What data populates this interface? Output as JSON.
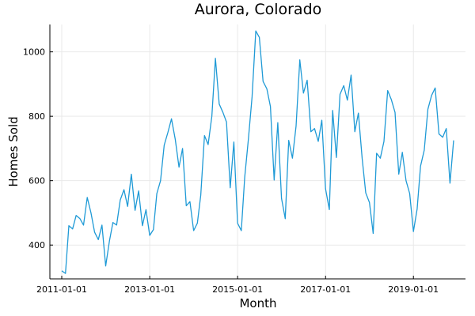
{
  "chart_data": {
    "type": "line",
    "title": "Aurora, Colorado",
    "xlabel": "Month",
    "ylabel": "Homes Sold",
    "x_start": "2011-01-01",
    "x_end": "2019-12-01",
    "x_ticks": [
      "2011-01-01",
      "2013-01-01",
      "2015-01-01",
      "2017-01-01",
      "2019-01-01"
    ],
    "y_ticks": [
      400,
      600,
      800,
      1000
    ],
    "ylim": [
      295,
      1085
    ],
    "grid": true,
    "legend": "none",
    "series": [
      {
        "color": "#1f9ad6",
        "x": [
          "2011-01-01",
          "2011-02-01",
          "2011-03-01",
          "2011-04-01",
          "2011-05-01",
          "2011-06-01",
          "2011-07-01",
          "2011-08-01",
          "2011-09-01",
          "2011-10-01",
          "2011-11-01",
          "2011-12-01",
          "2012-01-01",
          "2012-02-01",
          "2012-03-01",
          "2012-04-01",
          "2012-05-01",
          "2012-06-01",
          "2012-07-01",
          "2012-08-01",
          "2012-09-01",
          "2012-10-01",
          "2012-11-01",
          "2012-12-01",
          "2013-01-01",
          "2013-02-01",
          "2013-03-01",
          "2013-04-01",
          "2013-05-01",
          "2013-06-01",
          "2013-07-01",
          "2013-08-01",
          "2013-09-01",
          "2013-10-01",
          "2013-11-01",
          "2013-12-01",
          "2014-01-01",
          "2014-02-01",
          "2014-03-01",
          "2014-04-01",
          "2014-05-01",
          "2014-06-01",
          "2014-07-01",
          "2014-08-01",
          "2014-09-01",
          "2014-10-01",
          "2014-11-01",
          "2014-12-01",
          "2015-01-01",
          "2015-02-01",
          "2015-03-01",
          "2015-04-01",
          "2015-05-01",
          "2015-06-01",
          "2015-07-01",
          "2015-08-01",
          "2015-09-01",
          "2015-10-01",
          "2015-11-01",
          "2015-12-01",
          "2016-01-01",
          "2016-02-01",
          "2016-03-01",
          "2016-04-01",
          "2016-05-01",
          "2016-06-01",
          "2016-07-01",
          "2016-08-01",
          "2016-09-01",
          "2016-10-01",
          "2016-11-01",
          "2016-12-01",
          "2017-01-01",
          "2017-02-01",
          "2017-03-01",
          "2017-04-01",
          "2017-05-01",
          "2017-06-01",
          "2017-07-01",
          "2017-08-01",
          "2017-09-01",
          "2017-10-01",
          "2017-11-01",
          "2017-12-01",
          "2018-01-01",
          "2018-02-01",
          "2018-03-01",
          "2018-04-01",
          "2018-05-01",
          "2018-06-01",
          "2018-07-01",
          "2018-08-01",
          "2018-09-01",
          "2018-10-01",
          "2018-11-01",
          "2018-12-01",
          "2019-01-01",
          "2019-02-01",
          "2019-03-01",
          "2019-04-01",
          "2019-05-01",
          "2019-06-01",
          "2019-07-01",
          "2019-08-01",
          "2019-09-01",
          "2019-10-01",
          "2019-11-01",
          "2019-12-01"
        ],
        "values": [
          320,
          312,
          460,
          450,
          492,
          482,
          462,
          548,
          500,
          440,
          417,
          462,
          335,
          412,
          470,
          462,
          540,
          572,
          520,
          620,
          508,
          568,
          460,
          510,
          430,
          448,
          560,
          600,
          710,
          750,
          792,
          728,
          642,
          700,
          522,
          535,
          445,
          468,
          555,
          740,
          712,
          800,
          980,
          838,
          812,
          782,
          578,
          720,
          468,
          445,
          610,
          730,
          860,
          1065,
          1045,
          908,
          885,
          830,
          602,
          780,
          545,
          482,
          725,
          670,
          770,
          975,
          872,
          912,
          752,
          762,
          722,
          788,
          575,
          510,
          818,
          672,
          868,
          895,
          850,
          928,
          752,
          810,
          668,
          562,
          532,
          436,
          685,
          670,
          722,
          880,
          852,
          812,
          620,
          688,
          600,
          560,
          442,
          512,
          645,
          695,
          822,
          865,
          888,
          745,
          735,
          762,
          592,
          725
        ]
      }
    ]
  }
}
